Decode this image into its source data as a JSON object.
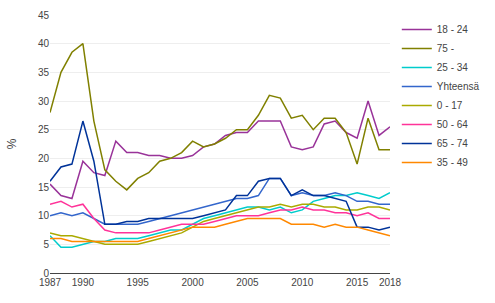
{
  "chart_data": {
    "type": "line",
    "x": [
      1987,
      1988,
      1989,
      1990,
      1991,
      1992,
      1993,
      1994,
      1995,
      1996,
      1997,
      1998,
      1999,
      2000,
      2001,
      2002,
      2003,
      2004,
      2005,
      2006,
      2007,
      2008,
      2009,
      2010,
      2011,
      2012,
      2013,
      2014,
      2015,
      2016,
      2017,
      2018
    ],
    "series": [
      {
        "name": "18 - 24",
        "color": "#993399",
        "values": [
          15.5,
          13.5,
          13.0,
          19.5,
          17.5,
          17.0,
          23.0,
          21.0,
          21.0,
          20.5,
          20.5,
          20.0,
          20.0,
          20.5,
          22.0,
          22.5,
          24.0,
          24.5,
          24.5,
          26.5,
          26.5,
          26.5,
          22.0,
          21.5,
          22.0,
          26.0,
          26.5,
          24.5,
          23.5,
          30.0,
          24.0,
          25.5
        ]
      },
      {
        "name": "75 -",
        "color": "#808000",
        "values": [
          28.0,
          35.0,
          38.5,
          40.0,
          26.5,
          18.0,
          16.0,
          14.5,
          16.5,
          17.5,
          19.5,
          20.0,
          21.0,
          23.0,
          22.0,
          22.5,
          23.5,
          25.0,
          25.0,
          27.5,
          31.0,
          30.5,
          27.0,
          27.5,
          25.0,
          27.0,
          27.0,
          24.5,
          19.0,
          27.0,
          21.5,
          21.5
        ]
      },
      {
        "name": "25 - 34",
        "color": "#00CCCC",
        "values": [
          6.5,
          4.5,
          4.5,
          5.0,
          5.5,
          5.5,
          6.0,
          6.0,
          6.0,
          6.5,
          7.0,
          7.5,
          7.5,
          8.5,
          9.5,
          10.0,
          10.5,
          11.0,
          11.5,
          11.5,
          11.0,
          11.5,
          10.5,
          11.0,
          12.5,
          13.0,
          13.5,
          13.5,
          14.0,
          13.5,
          13.0,
          14.0
        ]
      },
      {
        "name": "Yhteensä",
        "color": "#3366CC",
        "values": [
          10.0,
          10.5,
          10.0,
          10.5,
          9.5,
          8.5,
          8.5,
          8.5,
          8.5,
          9.0,
          9.5,
          10.0,
          10.5,
          11.0,
          11.5,
          12.0,
          12.5,
          13.0,
          13.0,
          13.5,
          16.5,
          16.5,
          13.5,
          14.0,
          13.5,
          13.5,
          14.0,
          13.5,
          12.5,
          12.5,
          12.0,
          12.0
        ]
      },
      {
        "name": "0 - 17",
        "color": "#AAAA00",
        "values": [
          7.0,
          6.5,
          6.5,
          6.0,
          5.5,
          5.0,
          5.0,
          5.0,
          5.0,
          5.5,
          6.0,
          6.5,
          7.0,
          8.0,
          9.0,
          9.5,
          10.0,
          10.5,
          11.0,
          11.5,
          11.5,
          12.0,
          11.5,
          12.0,
          12.0,
          11.5,
          11.5,
          11.0,
          11.0,
          11.5,
          11.5,
          11.0
        ]
      },
      {
        "name": "50 - 64",
        "color": "#FF3399",
        "values": [
          12.0,
          12.5,
          11.5,
          12.0,
          9.5,
          7.5,
          7.0,
          7.0,
          7.0,
          7.0,
          7.5,
          8.0,
          8.5,
          8.5,
          8.5,
          9.0,
          9.5,
          10.0,
          10.0,
          10.0,
          10.5,
          11.0,
          11.0,
          11.5,
          11.0,
          11.0,
          10.5,
          10.5,
          10.0,
          10.5,
          9.5,
          9.5
        ]
      },
      {
        "name": "65 - 74",
        "color": "#003399",
        "values": [
          16.0,
          18.5,
          19.0,
          26.5,
          19.5,
          8.5,
          8.5,
          9.0,
          9.0,
          9.5,
          9.5,
          9.5,
          9.5,
          9.5,
          10.0,
          10.5,
          11.0,
          13.5,
          13.5,
          16.0,
          16.5,
          16.5,
          13.5,
          14.5,
          13.5,
          13.5,
          13.0,
          12.5,
          8.0,
          8.0,
          7.5,
          8.0
        ]
      },
      {
        "name": "35 - 49",
        "color": "#FF8800",
        "values": [
          6.0,
          6.0,
          5.5,
          5.5,
          5.5,
          5.5,
          5.5,
          5.5,
          5.5,
          6.0,
          6.5,
          7.0,
          7.5,
          8.0,
          8.0,
          8.0,
          8.5,
          9.0,
          9.5,
          9.5,
          9.5,
          9.5,
          8.5,
          8.5,
          8.5,
          8.0,
          8.5,
          8.0,
          8.0,
          7.5,
          7.0,
          6.5
        ]
      }
    ],
    "xlim": [
      1987,
      2018
    ],
    "xticks": [
      1987,
      1990,
      1995,
      2000,
      2005,
      2010,
      2015,
      2018
    ],
    "ylim": [
      0,
      45
    ],
    "yticks": [
      0,
      5,
      10,
      15,
      20,
      25,
      30,
      35,
      40,
      45
    ],
    "ylabel": "%",
    "grid": true,
    "legend": "right"
  }
}
